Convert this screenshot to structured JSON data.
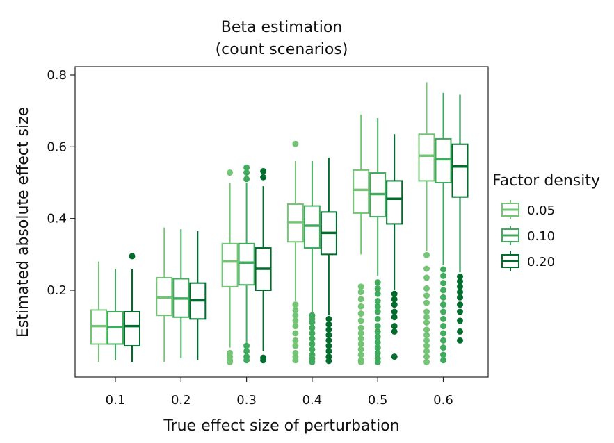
{
  "chart_data": {
    "type": "boxplot",
    "title_line1": "Beta estimation",
    "title_line2": "(count scenarios)",
    "xlabel": "True effect size of perturbation",
    "ylabel": "Estimated absolute effect size",
    "ylim": [
      -0.05,
      0.83
    ],
    "yticks": [
      0.2,
      0.4,
      0.6,
      0.8
    ],
    "ytick_labels": [
      "0.2",
      "0.4",
      "0.6",
      "0.8"
    ],
    "categories": [
      "0.1",
      "0.2",
      "0.3",
      "0.4",
      "0.5",
      "0.6"
    ],
    "legend": {
      "title": "Factor density",
      "position": "right"
    },
    "series": [
      {
        "name": "0.05",
        "color": "#74c476",
        "boxes": [
          {
            "min": 0.0,
            "q1": 0.05,
            "median": 0.1,
            "q3": 0.145,
            "max": 0.28,
            "outliers": []
          },
          {
            "min": 0.0,
            "q1": 0.13,
            "median": 0.18,
            "q3": 0.235,
            "max": 0.375,
            "outliers": []
          },
          {
            "min": 0.04,
            "q1": 0.21,
            "median": 0.28,
            "q3": 0.33,
            "max": 0.5,
            "outliers": [
              0.528,
              0.025,
              0.015,
              0.005,
              0.0
            ]
          },
          {
            "min": 0.17,
            "q1": 0.335,
            "median": 0.39,
            "q3": 0.44,
            "max": 0.56,
            "outliers": [
              0.608,
              0.16,
              0.145,
              0.13,
              0.115,
              0.1,
              0.08,
              0.06,
              0.045,
              0.025,
              0.015,
              0.005
            ]
          },
          {
            "min": 0.3,
            "q1": 0.415,
            "median": 0.48,
            "q3": 0.535,
            "max": 0.69,
            "outliers": [
              0.21,
              0.195,
              0.175,
              0.155,
              0.135,
              0.115,
              0.095,
              0.08,
              0.065,
              0.05,
              0.035,
              0.02,
              0.005,
              0.0
            ]
          },
          {
            "min": 0.31,
            "q1": 0.505,
            "median": 0.575,
            "q3": 0.635,
            "max": 0.78,
            "outliers": [
              0.298,
              0.26,
              0.235,
              0.205,
              0.185,
              0.165,
              0.14,
              0.125,
              0.11,
              0.09,
              0.075,
              0.06,
              0.045,
              0.03,
              0.015,
              0.0
            ]
          }
        ]
      },
      {
        "name": "0.10",
        "color": "#41ab5d",
        "boxes": [
          {
            "min": 0.005,
            "q1": 0.05,
            "median": 0.097,
            "q3": 0.14,
            "max": 0.26,
            "outliers": []
          },
          {
            "min": 0.01,
            "q1": 0.125,
            "median": 0.177,
            "q3": 0.232,
            "max": 0.37,
            "outliers": []
          },
          {
            "min": 0.04,
            "q1": 0.215,
            "median": 0.277,
            "q3": 0.33,
            "max": 0.5,
            "outliers": [
              0.542,
              0.528,
              0.51,
              0.045,
              0.03,
              0.015,
              0.005
            ]
          },
          {
            "min": 0.14,
            "q1": 0.318,
            "median": 0.38,
            "q3": 0.435,
            "max": 0.56,
            "outliers": [
              0.13,
              0.12,
              0.11,
              0.095,
              0.08,
              0.065,
              0.05,
              0.035,
              0.02,
              0.01,
              0.0
            ]
          },
          {
            "min": 0.24,
            "q1": 0.405,
            "median": 0.468,
            "q3": 0.527,
            "max": 0.68,
            "outliers": [
              0.222,
              0.205,
              0.19,
              0.17,
              0.155,
              0.14,
              0.12,
              0.1,
              0.085,
              0.07,
              0.055,
              0.04,
              0.025,
              0.01,
              0.0
            ]
          },
          {
            "min": 0.27,
            "q1": 0.5,
            "median": 0.565,
            "q3": 0.622,
            "max": 0.75,
            "outliers": [
              0.258,
              0.24,
              0.22,
              0.2,
              0.18,
              0.16,
              0.14,
              0.12,
              0.1,
              0.08,
              0.06,
              0.04,
              0.02,
              0.005
            ]
          }
        ]
      },
      {
        "name": "0.20",
        "color": "#006d2c",
        "boxes": [
          {
            "min": 0.0,
            "q1": 0.045,
            "median": 0.1,
            "q3": 0.14,
            "max": 0.26,
            "outliers": [
              0.295
            ]
          },
          {
            "min": 0.005,
            "q1": 0.12,
            "median": 0.172,
            "q3": 0.22,
            "max": 0.365,
            "outliers": []
          },
          {
            "min": 0.03,
            "q1": 0.2,
            "median": 0.26,
            "q3": 0.318,
            "max": 0.49,
            "outliers": [
              0.532,
              0.515,
              0.012,
              0.005
            ]
          },
          {
            "min": 0.13,
            "q1": 0.3,
            "median": 0.36,
            "q3": 0.418,
            "max": 0.57,
            "outliers": [
              0.12,
              0.105,
              0.09,
              0.075,
              0.06,
              0.045,
              0.03,
              0.015,
              0.003
            ]
          },
          {
            "min": 0.2,
            "q1": 0.385,
            "median": 0.455,
            "q3": 0.505,
            "max": 0.635,
            "outliers": [
              0.19,
              0.175,
              0.16,
              0.14,
              0.125,
              0.1,
              0.085,
              0.015
            ]
          },
          {
            "min": 0.25,
            "q1": 0.46,
            "median": 0.545,
            "q3": 0.607,
            "max": 0.745,
            "outliers": [
              0.238,
              0.225,
              0.21,
              0.195,
              0.18,
              0.16,
              0.14,
              0.115,
              0.085,
              0.06
            ]
          }
        ]
      }
    ]
  }
}
